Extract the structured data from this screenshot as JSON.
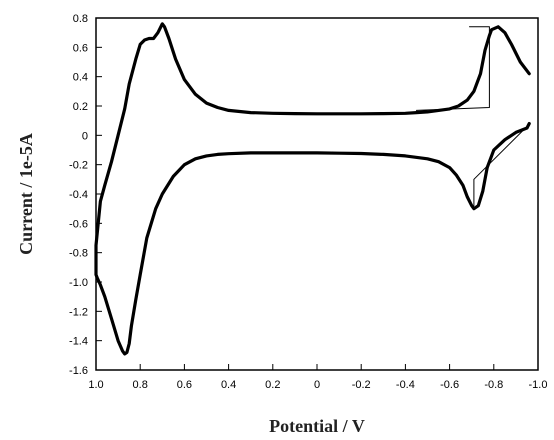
{
  "chart_data": {
    "type": "line",
    "title": "",
    "xlabel": "Potential / V",
    "ylabel": "Current / 1e-5A",
    "xlim": [
      1.0,
      -1.0
    ],
    "ylim": [
      -1.6,
      0.8
    ],
    "x_reversed": true,
    "grid": false,
    "legend": "none",
    "x_ticks": [
      "1.0",
      "0.8",
      "0.6",
      "0.4",
      "0.2",
      "0",
      "-0.2",
      "-0.4",
      "-0.6",
      "-0.8",
      "-1.0"
    ],
    "y_ticks": [
      "0.8",
      "0.6",
      "0.4",
      "0.2",
      "0",
      "-0.2",
      "-0.4",
      "-0.6",
      "-0.8",
      "-1.0",
      "-1.2",
      "-1.4",
      "-1.6"
    ],
    "series": [
      {
        "style": "thick",
        "x": [
          -0.96,
          -0.92,
          -0.88,
          -0.85,
          -0.82,
          -0.79,
          -0.78,
          -0.76,
          -0.74,
          -0.71,
          -0.68,
          -0.64,
          -0.6,
          -0.55,
          -0.5,
          -0.45,
          -0.4,
          -0.3,
          -0.2,
          -0.1,
          0.0,
          0.1,
          0.2,
          0.3,
          0.4,
          0.45,
          0.5,
          0.55,
          0.6,
          0.64,
          0.67,
          0.69,
          0.7,
          0.72,
          0.74,
          0.76,
          0.78,
          0.8,
          0.82,
          0.85,
          0.87,
          0.9,
          0.93,
          0.96,
          0.98,
          0.99,
          1.0,
          1.0,
          0.995,
          0.98,
          0.96,
          0.93,
          0.9,
          0.88,
          0.87,
          0.86,
          0.85,
          0.84,
          0.82,
          0.8,
          0.77,
          0.73,
          0.7,
          0.65,
          0.6,
          0.55,
          0.5,
          0.45,
          0.4,
          0.3,
          0.2,
          0.1,
          0.0,
          -0.1,
          -0.2,
          -0.3,
          -0.4,
          -0.5,
          -0.55,
          -0.6,
          -0.63,
          -0.66,
          -0.68,
          -0.7,
          -0.71,
          -0.73,
          -0.75,
          -0.77,
          -0.8,
          -0.85,
          -0.9,
          -0.95,
          -0.96
        ],
        "y": [
          0.42,
          0.5,
          0.62,
          0.7,
          0.74,
          0.72,
          0.68,
          0.58,
          0.42,
          0.3,
          0.24,
          0.2,
          0.18,
          0.17,
          0.16,
          0.155,
          0.15,
          0.148,
          0.147,
          0.147,
          0.147,
          0.148,
          0.15,
          0.155,
          0.17,
          0.19,
          0.22,
          0.28,
          0.38,
          0.52,
          0.66,
          0.74,
          0.76,
          0.7,
          0.66,
          0.66,
          0.65,
          0.62,
          0.52,
          0.35,
          0.18,
          0.0,
          -0.18,
          -0.34,
          -0.45,
          -0.6,
          -0.75,
          -0.95,
          -0.97,
          -1.02,
          -1.1,
          -1.25,
          -1.4,
          -1.47,
          -1.49,
          -1.48,
          -1.42,
          -1.3,
          -1.12,
          -0.95,
          -0.7,
          -0.5,
          -0.4,
          -0.28,
          -0.2,
          -0.16,
          -0.14,
          -0.13,
          -0.125,
          -0.12,
          -0.12,
          -0.12,
          -0.12,
          -0.122,
          -0.124,
          -0.13,
          -0.14,
          -0.16,
          -0.18,
          -0.22,
          -0.27,
          -0.34,
          -0.42,
          -0.48,
          -0.5,
          -0.48,
          -0.38,
          -0.22,
          -0.1,
          -0.03,
          0.02,
          0.05,
          0.08
        ]
      },
      {
        "style": "thin",
        "x": [
          -0.45,
          -0.78,
          -0.78,
          -0.69
        ],
        "y": [
          0.17,
          0.19,
          0.74,
          0.74
        ]
      },
      {
        "style": "thin",
        "x": [
          -0.71,
          -0.71,
          -0.95
        ],
        "y": [
          -0.48,
          -0.3,
          0.06
        ]
      }
    ]
  }
}
